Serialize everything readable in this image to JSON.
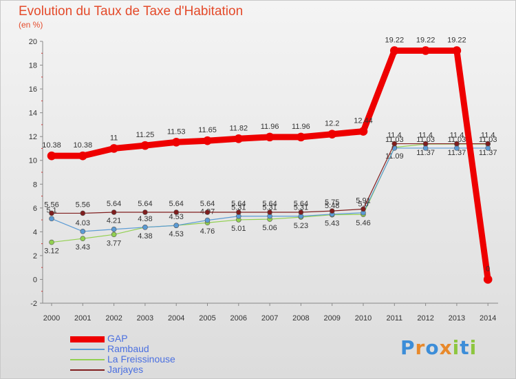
{
  "title": "Evolution du Taux de Taxe d'Habitation",
  "subtitle": "(en %)",
  "logo_text": "Proxiti",
  "chart_data": {
    "type": "line",
    "title": "Evolution du Taux de Taxe d'Habitation",
    "ylabel": "(en %)",
    "x": [
      "2000",
      "2001",
      "2002",
      "2003",
      "2004",
      "2005",
      "2006",
      "2007",
      "2008",
      "2009",
      "2010",
      "2011",
      "2012",
      "2013",
      "2014"
    ],
    "yticks": [
      "-2",
      "0",
      "2",
      "4",
      "6",
      "8",
      "10",
      "12",
      "14",
      "16",
      "18",
      "20"
    ],
    "ylim": [
      -2,
      20
    ],
    "grid": false,
    "legend_position": "bottom-left",
    "series": [
      {
        "name": "GAP",
        "color": "#ee0000",
        "values": [
          10.38,
          10.38,
          11,
          11.25,
          11.53,
          11.65,
          11.82,
          11.96,
          11.96,
          12.2,
          12.44,
          19.22,
          19.22,
          19.22,
          0
        ],
        "labels": [
          "10.38",
          "10.38",
          "11",
          "11.25",
          "11.53",
          "11.65",
          "11.82",
          "11.96",
          "11.96",
          "12.2",
          "12.44",
          "19.22",
          "19.22",
          "19.22",
          "0"
        ]
      },
      {
        "name": "Rambaud",
        "color": "#5b9bd5",
        "values": [
          5.1,
          4.03,
          4.21,
          4.38,
          4.53,
          4.97,
          5.31,
          5.31,
          5.31,
          5.48,
          5.6,
          11.03,
          11.03,
          11.03,
          11.03
        ],
        "labels": [
          "5.1",
          "4.03",
          "4.21",
          "4.38",
          "4.53",
          "4.97",
          "5.31",
          "5.31",
          "5.31",
          "5.48",
          "5.6",
          "11.03",
          "11.03",
          "11.03",
          "11.03"
        ]
      },
      {
        "name": "La Freissinouse",
        "color": "#92d050",
        "values": [
          3.12,
          3.43,
          3.77,
          4.38,
          4.53,
          4.76,
          5.01,
          5.06,
          5.23,
          5.43,
          5.46,
          11.09,
          11.37,
          11.37,
          11.37
        ],
        "labels": [
          "3.12",
          "3.43",
          "3.77",
          "4.38",
          "4.53",
          "4.76",
          "5.01",
          "5.06",
          "5.23",
          "5.43",
          "5.46",
          "11.09",
          "11.37",
          "11.37",
          "11.37"
        ]
      },
      {
        "name": "Jarjayes",
        "color": "#7f1d1d",
        "values": [
          5.56,
          5.56,
          5.64,
          5.64,
          5.64,
          5.64,
          5.64,
          5.64,
          5.64,
          5.75,
          5.91,
          11.4,
          11.4,
          11.4,
          11.4
        ],
        "labels": [
          "5.56",
          "5.56",
          "5.64",
          "5.64",
          "5.64",
          "5.64",
          "5.64",
          "5.64",
          "5.64",
          "5.75",
          "5.91",
          "11.4",
          "11.4",
          "11.4",
          "11.4"
        ]
      }
    ]
  }
}
